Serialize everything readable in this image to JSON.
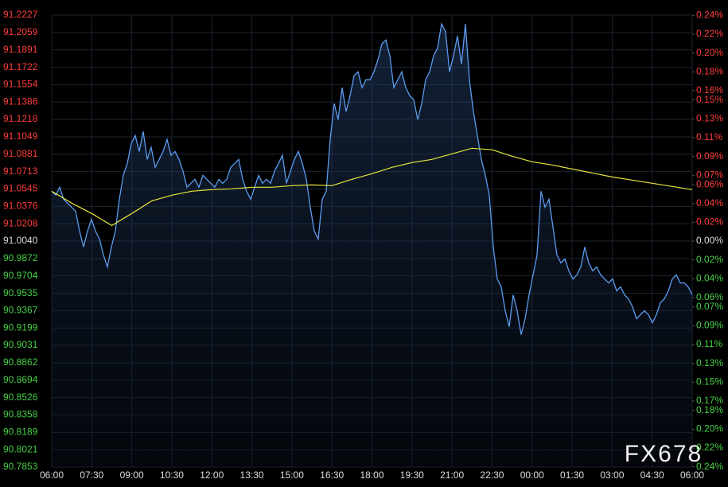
{
  "chart_data": {
    "type": "line",
    "watermark": "FX678",
    "x_labels": [
      "06:00",
      "07:30",
      "09:00",
      "10:30",
      "12:00",
      "13:30",
      "15:00",
      "16:30",
      "18:00",
      "19:30",
      "21:00",
      "22:30",
      "00:00",
      "01:30",
      "03:00",
      "04:30",
      "06:00"
    ],
    "series": [
      {
        "name": "price",
        "color": "#5b9cf0",
        "fill": true,
        "values": [
          91.0523,
          91.0484,
          91.0561,
          91.0445,
          91.0407,
          91.0368,
          91.033,
          91.0137,
          90.9983,
          91.0137,
          91.0253,
          91.0137,
          91.006,
          90.9906,
          90.979,
          90.9983,
          91.0137,
          91.0445,
          91.0677,
          91.0792,
          91.0985,
          91.1062,
          91.0908,
          91.1101,
          91.0831,
          91.0947,
          91.0754,
          91.0831,
          91.0908,
          91.1024,
          91.087,
          91.0908,
          91.0831,
          91.0715,
          91.0561,
          91.06,
          91.0638,
          91.0561,
          91.0677,
          91.0638,
          91.06,
          91.0561,
          91.0638,
          91.06,
          91.0638,
          91.0754,
          91.0792,
          91.0831,
          91.0638,
          91.0523,
          91.0445,
          91.0561,
          91.0677,
          91.06,
          91.0638,
          91.06,
          91.0715,
          91.0792,
          91.087,
          91.06,
          91.0715,
          91.0831,
          91.0908,
          91.0792,
          91.0638,
          91.0368,
          91.0137,
          91.006,
          91.0445,
          91.0523,
          91.1024,
          91.1371,
          91.1216,
          91.1525,
          91.1294,
          91.1448,
          91.1641,
          91.1679,
          91.1525,
          91.1602,
          91.1602,
          91.1679,
          91.1795,
          91.1949,
          91.1987,
          91.1833,
          91.1525,
          91.1602,
          91.1679,
          91.1525,
          91.1448,
          91.1409,
          91.1216,
          91.1371,
          91.1602,
          91.1679,
          91.1833,
          91.191,
          91.2142,
          91.2065,
          91.1679,
          91.1833,
          91.2026,
          91.1756,
          91.2142,
          91.1602,
          91.1294,
          91.1062,
          91.0831,
          91.0677,
          91.0484,
          90.9983,
          90.9674,
          90.9597,
          90.9366,
          90.9212,
          90.952,
          90.9366,
          90.9135,
          90.9289,
          90.952,
          90.9713,
          90.9906,
          91.0523,
          91.0368,
          91.0445,
          91.0176,
          90.9906,
          90.9829,
          90.9867,
          90.9752,
          90.9674,
          90.9713,
          90.979,
          90.9983,
          90.9829,
          90.9752,
          90.979,
          90.9713,
          90.9674,
          90.9636,
          90.9674,
          90.9559,
          90.9597,
          90.952,
          90.9482,
          90.9405,
          90.9289,
          90.9328,
          90.9366,
          90.9328,
          90.925,
          90.9328,
          90.9443,
          90.9482,
          90.9559,
          90.9674,
          90.9713,
          90.9636,
          90.9636,
          90.9597,
          90.952
        ]
      },
      {
        "name": "average",
        "color": "#e6e63c",
        "fill": false,
        "values": [
          91.0523,
          91.0407,
          91.0307,
          91.0191,
          91.0307,
          91.043,
          91.0484,
          91.0523,
          91.0538,
          91.0546,
          91.0561,
          91.0561,
          91.0577,
          91.0584,
          91.0577,
          91.0638,
          91.0692,
          91.0754,
          91.08,
          91.0831,
          91.0885,
          91.0939,
          91.0924,
          91.0862,
          91.0808,
          91.0777,
          91.0738,
          91.07,
          91.0661,
          91.0631,
          91.06,
          91.0569,
          91.0538
        ]
      }
    ],
    "ylim": [
      90.7853,
      91.2227
    ],
    "yticks": [
      91.2227,
      91.2059,
      91.1891,
      91.1722,
      91.1554,
      91.1386,
      91.1218,
      91.1049,
      91.0881,
      91.0713,
      91.0545,
      91.0376,
      91.0208,
      {
        "value": 91.004,
        "label": "91.0040"
      },
      90.9872,
      90.9704,
      90.9535,
      90.9367,
      90.9199,
      90.9031,
      90.8862,
      90.8694,
      90.8526,
      90.8358,
      90.8189,
      90.8021,
      90.7853
    ],
    "y2lim": [
      -0.2403,
      0.2403
    ],
    "y2ticks": [
      {
        "value": 0.24,
        "label": "0.24%"
      },
      {
        "value": 0.22,
        "label": "0.22%"
      },
      {
        "value": 0.2,
        "label": "0.20%"
      },
      {
        "value": 0.18,
        "label": "0.18%"
      },
      {
        "value": 0.16,
        "label": "0.16%"
      },
      {
        "value": 0.15,
        "label": "0.15%"
      },
      {
        "value": 0.13,
        "label": "0.13%"
      },
      {
        "value": 0.11,
        "label": "0.11%"
      },
      {
        "value": 0.09,
        "label": "0.09%"
      },
      {
        "value": 0.07,
        "label": "0.07%"
      },
      {
        "value": 0.06,
        "label": "0.06%"
      },
      {
        "value": 0.04,
        "label": "0.04%"
      },
      {
        "value": 0.02,
        "label": "0.02%"
      },
      {
        "value": 0,
        "label": "0.00%"
      },
      {
        "value": -0.02,
        "label": "0.02%"
      },
      {
        "value": -0.04,
        "label": "0.04%"
      },
      {
        "value": -0.06,
        "label": "0.06%"
      },
      {
        "value": -0.07,
        "label": "0.07%"
      },
      {
        "value": -0.09,
        "label": "0.09%"
      },
      {
        "value": -0.11,
        "label": "0.11%"
      },
      {
        "value": -0.13,
        "label": "0.13%"
      },
      {
        "value": -0.15,
        "label": "0.15%"
      },
      {
        "value": -0.17,
        "label": "0.17%"
      },
      {
        "value": -0.18,
        "label": "0.18%"
      },
      {
        "value": -0.2,
        "label": "0.20%"
      },
      {
        "value": -0.22,
        "label": "0.22%"
      },
      {
        "value": -0.24,
        "label": "0.24%"
      }
    ],
    "grid": true,
    "up_color": "#ff3c3c",
    "down_color": "#44d044",
    "flat_color": "#dddddd"
  }
}
